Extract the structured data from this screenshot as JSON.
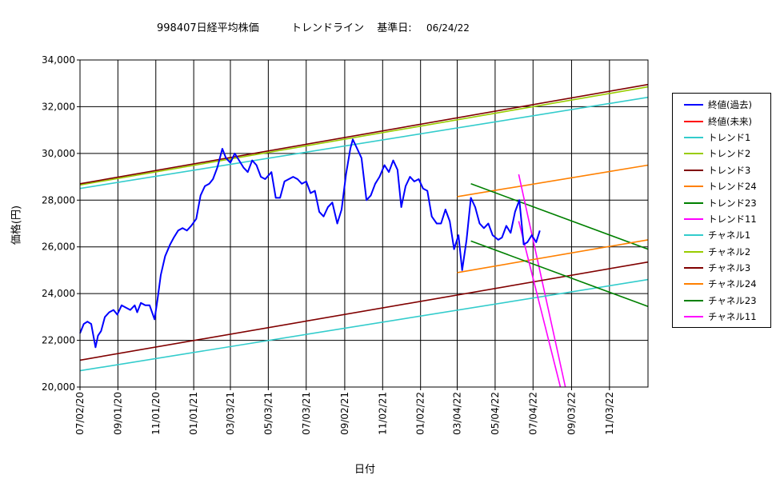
{
  "title": {
    "code_name": "998407日経平均株価",
    "chart_name": "トレンドライン",
    "base_label": "基準日:",
    "base_date": "06/24/22"
  },
  "chart_data": {
    "type": "line",
    "xlabel": "日付",
    "ylabel": "価格(円)",
    "ylim": [
      20000,
      34000
    ],
    "yticks": [
      20000,
      22000,
      24000,
      26000,
      28000,
      30000,
      32000,
      34000
    ],
    "ytick_labels": [
      "20,000",
      "22,000",
      "24,000",
      "26,000",
      "28,000",
      "30,000",
      "32,000",
      "34,000"
    ],
    "xlim": [
      "2020-07-02",
      "2023-01-02"
    ],
    "xticks": [
      "2020-07-02",
      "2020-09-01",
      "2020-11-01",
      "2021-01-01",
      "2021-03-01",
      "2021-05-01",
      "2021-07-01",
      "2021-09-01",
      "2021-11-01",
      "2022-01-01",
      "2022-03-01",
      "2022-05-01",
      "2022-07-01",
      "2022-09-01",
      "2022-11-01"
    ],
    "xtick_labels": [
      "07/02/20",
      "09/01/20",
      "11/01/20",
      "01/01/21",
      "03/03/21",
      "05/03/21",
      "07/03/21",
      "09/02/21",
      "11/02/21",
      "01/02/22",
      "03/04/22",
      "05/04/22",
      "07/04/22",
      "09/03/22",
      "11/03/22"
    ],
    "grid": true,
    "legend_position": "right",
    "series": [
      {
        "name": "終値(過去)",
        "color": "#0000ff",
        "width": 2,
        "x": [
          "2020-07-02",
          "2020-07-08",
          "2020-07-14",
          "2020-07-20",
          "2020-07-27",
          "2020-07-31",
          "2020-08-05",
          "2020-08-11",
          "2020-08-18",
          "2020-08-25",
          "2020-08-31",
          "2020-09-07",
          "2020-09-14",
          "2020-09-21",
          "2020-09-28",
          "2020-10-02",
          "2020-10-08",
          "2020-10-15",
          "2020-10-22",
          "2020-10-30",
          "2020-11-04",
          "2020-11-09",
          "2020-11-16",
          "2020-11-24",
          "2020-11-30",
          "2020-12-07",
          "2020-12-14",
          "2020-12-21",
          "2020-12-28",
          "2021-01-05",
          "2021-01-12",
          "2021-01-19",
          "2021-01-26",
          "2021-02-01",
          "2021-02-08",
          "2021-02-16",
          "2021-02-22",
          "2021-03-01",
          "2021-03-08",
          "2021-03-15",
          "2021-03-22",
          "2021-03-29",
          "2021-04-05",
          "2021-04-12",
          "2021-04-19",
          "2021-04-26",
          "2021-05-06",
          "2021-05-13",
          "2021-05-20",
          "2021-05-27",
          "2021-06-03",
          "2021-06-10",
          "2021-06-17",
          "2021-06-24",
          "2021-07-01",
          "2021-07-08",
          "2021-07-15",
          "2021-07-22",
          "2021-07-29",
          "2021-08-05",
          "2021-08-12",
          "2021-08-20",
          "2021-08-27",
          "2021-09-03",
          "2021-09-10",
          "2021-09-14",
          "2021-09-21",
          "2021-09-28",
          "2021-10-06",
          "2021-10-13",
          "2021-10-20",
          "2021-10-27",
          "2021-11-04",
          "2021-11-11",
          "2021-11-18",
          "2021-11-25",
          "2021-12-01",
          "2021-12-08",
          "2021-12-15",
          "2021-12-22",
          "2021-12-29",
          "2022-01-05",
          "2022-01-12",
          "2022-01-19",
          "2022-01-27",
          "2022-02-03",
          "2022-02-10",
          "2022-02-17",
          "2022-02-24",
          "2022-03-03",
          "2022-03-09",
          "2022-03-16",
          "2022-03-23",
          "2022-03-30",
          "2022-04-06",
          "2022-04-13",
          "2022-04-20",
          "2022-04-27",
          "2022-05-06",
          "2022-05-12",
          "2022-05-19",
          "2022-05-26",
          "2022-06-02",
          "2022-06-09",
          "2022-06-16",
          "2022-06-22",
          "2022-06-29",
          "2022-07-06",
          "2022-07-12"
        ],
        "y": [
          22300,
          22700,
          22800,
          22700,
          21700,
          22200,
          22400,
          23000,
          23200,
          23300,
          23100,
          23500,
          23400,
          23300,
          23500,
          23200,
          23600,
          23500,
          23500,
          22900,
          23800,
          24800,
          25600,
          26100,
          26400,
          26700,
          26800,
          26700,
          26900,
          27200,
          28200,
          28600,
          28700,
          28900,
          29400,
          30200,
          29800,
          29600,
          30000,
          29700,
          29400,
          29200,
          29700,
          29500,
          29000,
          28900,
          29200,
          28100,
          28100,
          28800,
          28900,
          29000,
          28900,
          28700,
          28800,
          28300,
          28400,
          27500,
          27300,
          27700,
          27900,
          27000,
          27600,
          29100,
          30200,
          30600,
          30200,
          29800,
          28000,
          28200,
          28700,
          29000,
          29500,
          29200,
          29700,
          29300,
          27700,
          28600,
          29000,
          28800,
          28900,
          28500,
          28400,
          27300,
          27000,
          27000,
          27600,
          27100,
          25900,
          26500,
          25000,
          26300,
          28100,
          27700,
          27000,
          26800,
          27000,
          26500,
          26300,
          26400,
          26900,
          26600,
          27500,
          28000,
          26100,
          26200,
          26500,
          26200,
          26700
        ]
      },
      {
        "name": "終値(未来)",
        "color": "#ff0000",
        "width": 1.3,
        "x": [],
        "y": []
      },
      {
        "name": "トレンド1",
        "color": "#33cccc",
        "width": 1.6,
        "x": [
          "2020-07-02",
          "2023-01-02"
        ],
        "y": [
          28500,
          32400
        ]
      },
      {
        "name": "トレンド2",
        "color": "#99cc00",
        "width": 1.6,
        "x": [
          "2020-07-02",
          "2023-01-02"
        ],
        "y": [
          28650,
          32850
        ]
      },
      {
        "name": "トレンド3",
        "color": "#800000",
        "width": 1.6,
        "x": [
          "2020-07-02",
          "2023-01-02"
        ],
        "y": [
          28700,
          32950
        ]
      },
      {
        "name": "トレンド24",
        "color": "#ff8000",
        "width": 1.6,
        "x": [
          "2022-03-01",
          "2023-01-02"
        ],
        "y": [
          28150,
          29500
        ]
      },
      {
        "name": "トレンド23",
        "color": "#008000",
        "width": 1.6,
        "x": [
          "2022-03-23",
          "2023-01-02"
        ],
        "y": [
          28700,
          25900
        ]
      },
      {
        "name": "トレンド11",
        "color": "#ff00ff",
        "width": 1.6,
        "x": [
          "2022-06-08",
          "2022-08-22"
        ],
        "y": [
          29100,
          20000
        ]
      },
      {
        "name": "チャネル1",
        "color": "#33cccc",
        "width": 1.6,
        "x": [
          "2020-07-02",
          "2023-01-02"
        ],
        "y": [
          20700,
          24600
        ]
      },
      {
        "name": "チャネル2",
        "color": "#99cc00",
        "width": 1.6,
        "x": [],
        "y": []
      },
      {
        "name": "チャネル3",
        "color": "#800000",
        "width": 1.6,
        "x": [
          "2020-07-02",
          "2023-01-02"
        ],
        "y": [
          21150,
          25350
        ]
      },
      {
        "name": "チャネル24",
        "color": "#ff8000",
        "width": 1.6,
        "x": [
          "2022-03-01",
          "2023-01-02"
        ],
        "y": [
          24900,
          26300
        ]
      },
      {
        "name": "チャネル23",
        "color": "#008000",
        "width": 1.6,
        "x": [
          "2022-03-23",
          "2023-01-02"
        ],
        "y": [
          26250,
          23450
        ]
      },
      {
        "name": "チャネル11",
        "color": "#ff00ff",
        "width": 1.6,
        "x": [
          "2022-06-08",
          "2022-08-14"
        ],
        "y": [
          27100,
          20000
        ]
      }
    ]
  }
}
